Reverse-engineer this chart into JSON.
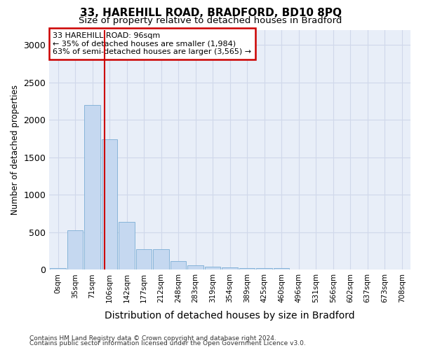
{
  "title1": "33, HAREHILL ROAD, BRADFORD, BD10 8PQ",
  "title2": "Size of property relative to detached houses in Bradford",
  "xlabel": "Distribution of detached houses by size in Bradford",
  "ylabel": "Number of detached properties",
  "bar_labels": [
    "0sqm",
    "35sqm",
    "71sqm",
    "106sqm",
    "142sqm",
    "177sqm",
    "212sqm",
    "248sqm",
    "283sqm",
    "319sqm",
    "354sqm",
    "389sqm",
    "425sqm",
    "460sqm",
    "496sqm",
    "531sqm",
    "566sqm",
    "602sqm",
    "637sqm",
    "673sqm",
    "708sqm"
  ],
  "bar_values": [
    25,
    525,
    2195,
    1740,
    640,
    270,
    270,
    120,
    60,
    40,
    30,
    20,
    20,
    20,
    0,
    0,
    0,
    0,
    0,
    0,
    0
  ],
  "bar_color": "#c5d8f0",
  "bar_edge_color": "#7aadd4",
  "vline_color": "#cc0000",
  "vline_pos": 2.71,
  "annotation_title": "33 HAREHILL ROAD: 96sqm",
  "annotation_line1": "← 35% of detached houses are smaller (1,984)",
  "annotation_line2": "63% of semi-detached houses are larger (3,565) →",
  "annotation_box_color": "#ffffff",
  "annotation_box_edge": "#cc0000",
  "ylim": [
    0,
    3200
  ],
  "yticks": [
    0,
    500,
    1000,
    1500,
    2000,
    2500,
    3000
  ],
  "grid_color": "#d0d8ea",
  "bg_color": "#e8eef8",
  "footer1": "Contains HM Land Registry data © Crown copyright and database right 2024.",
  "footer2": "Contains public sector information licensed under the Open Government Licence v3.0.",
  "title1_fontsize": 11,
  "title2_fontsize": 9.5
}
